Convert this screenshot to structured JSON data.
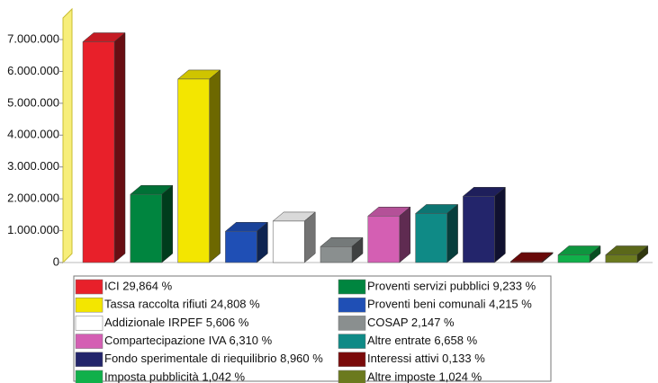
{
  "chart_data": {
    "type": "bar3d",
    "categories": [
      "ICI 29,864 %",
      "Proventi servizi pubblici 9,233 %",
      "Tassa raccolta rifiuti 24,808 %",
      "Proventi beni comunali 4,215 %",
      "Addizionale IRPEF 5,606 %",
      "COSAP 2,147 %",
      "Compartecipazione IVA 6,310 %",
      "Altre entrate 6,658 %",
      "Fondo sperimentale di riequilibrio 8,960 %",
      "Interessi attivi 0,133 %",
      "Imposta pubblicità 1,042 %",
      "Altre imposte 1,024 %"
    ],
    "values": [
      6930000,
      2140000,
      5760000,
      980000,
      1300000,
      500000,
      1460000,
      1540000,
      2080000,
      30000,
      240000,
      240000
    ],
    "colors": [
      "#e8202a",
      "#00853f",
      "#f3e600",
      "#1f4fb5",
      "#ffffff",
      "#8a8f8f",
      "#d45fb3",
      "#0f8a86",
      "#23256b",
      "#7a0a0a",
      "#10b04a",
      "#6b7a1e"
    ],
    "ylim": [
      0,
      7000000
    ],
    "yticks": [
      0,
      {
        "value": 1000000,
        "label": "1.000.000"
      },
      {
        "value": 2000000,
        "label": "2.000.000"
      },
      {
        "value": 3000000,
        "label": "3.000.000"
      },
      {
        "value": 4000000,
        "label": "4.000.000"
      },
      {
        "value": 5000000,
        "label": "5.000.000"
      },
      {
        "value": 6000000,
        "label": "6.000.000"
      },
      {
        "value": 7000000,
        "label": "7.000.000"
      }
    ],
    "legend": "bottom"
  }
}
